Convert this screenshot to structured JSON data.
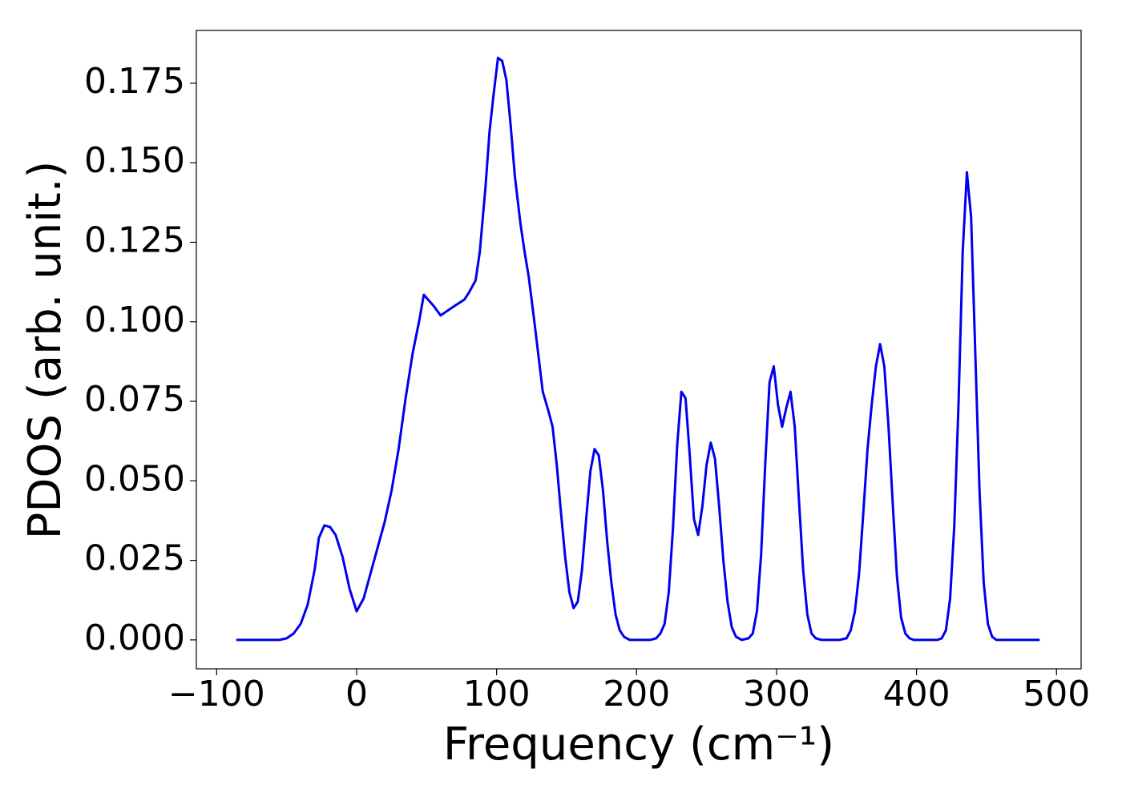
{
  "chart_data": {
    "type": "line",
    "x_label": "Frequency (cm⁻¹)",
    "y_label": "PDOS (arb. unit.)",
    "xlim": [
      -114.5,
      517.6
    ],
    "ylim": [
      -0.0091,
      0.1916
    ],
    "xticks": [
      {
        "value": -100,
        "label": "−100"
      },
      0,
      100,
      200,
      300,
      400,
      500
    ],
    "yticks": [
      {
        "value": 0,
        "label": "0.000"
      },
      {
        "value": 0.025,
        "label": "0.025"
      },
      {
        "value": 0.05,
        "label": "0.050"
      },
      {
        "value": 0.075,
        "label": "0.075"
      },
      {
        "value": 0.1,
        "label": "0.100"
      },
      {
        "value": 0.125,
        "label": "0.125"
      },
      {
        "value": 0.15,
        "label": "0.150"
      },
      {
        "value": 0.175,
        "label": "0.175"
      }
    ],
    "grid": false,
    "x": [
      -86,
      -55,
      -50,
      -45,
      -40,
      -35,
      -30,
      -27,
      -23,
      -19,
      -15,
      -10,
      -5,
      0,
      5,
      10,
      15,
      20,
      25,
      30,
      35,
      40,
      45,
      48,
      55,
      60,
      70,
      77,
      80,
      85,
      88,
      92,
      95,
      98,
      101,
      104,
      107,
      110,
      113,
      117,
      120,
      123,
      127,
      130,
      133,
      137,
      140,
      143,
      146,
      149,
      152,
      155,
      158,
      161,
      164,
      167,
      170,
      173,
      176,
      179,
      182,
      185,
      188,
      191,
      195,
      210,
      214,
      217,
      220,
      223,
      226,
      229,
      232,
      235,
      238,
      241,
      244,
      247,
      250,
      253,
      256,
      259,
      262,
      265,
      268,
      271,
      275,
      280,
      283,
      286,
      289,
      292,
      295,
      298,
      301,
      304,
      307,
      310,
      313,
      316,
      319,
      322,
      325,
      328,
      332,
      345,
      350,
      353,
      356,
      359,
      362,
      365,
      368,
      371,
      374,
      377,
      380,
      383,
      386,
      389,
      392,
      395,
      398,
      415,
      418,
      421,
      424,
      427,
      430,
      433,
      436,
      439,
      442,
      445,
      448,
      451,
      454,
      457,
      488
    ],
    "series": [
      {
        "color": "#0000ee",
        "values": [
          0,
          0,
          0.0005,
          0.002,
          0.005,
          0.011,
          0.022,
          0.032,
          0.036,
          0.0355,
          0.033,
          0.026,
          0.016,
          0.009,
          0.013,
          0.021,
          0.029,
          0.037,
          0.047,
          0.06,
          0.076,
          0.09,
          0.101,
          0.1085,
          0.105,
          0.102,
          0.105,
          0.107,
          0.109,
          0.113,
          0.122,
          0.142,
          0.16,
          0.172,
          0.183,
          0.182,
          0.176,
          0.162,
          0.146,
          0.131,
          0.122,
          0.114,
          0.1,
          0.089,
          0.078,
          0.072,
          0.067,
          0.055,
          0.04,
          0.026,
          0.015,
          0.01,
          0.012,
          0.022,
          0.038,
          0.053,
          0.06,
          0.058,
          0.047,
          0.031,
          0.018,
          0.008,
          0.003,
          0.001,
          0,
          0,
          0.0005,
          0.002,
          0.005,
          0.015,
          0.035,
          0.061,
          0.078,
          0.076,
          0.058,
          0.038,
          0.033,
          0.042,
          0.055,
          0.062,
          0.057,
          0.042,
          0.025,
          0.012,
          0.004,
          0.001,
          0,
          0.0005,
          0.002,
          0.009,
          0.027,
          0.056,
          0.081,
          0.086,
          0.074,
          0.067,
          0.073,
          0.078,
          0.067,
          0.044,
          0.022,
          0.008,
          0.002,
          0.0005,
          0,
          0,
          0.0005,
          0.003,
          0.009,
          0.021,
          0.04,
          0.06,
          0.074,
          0.086,
          0.093,
          0.086,
          0.067,
          0.043,
          0.02,
          0.007,
          0.002,
          0.0005,
          0,
          0,
          0.0005,
          0.003,
          0.013,
          0.036,
          0.074,
          0.122,
          0.147,
          0.133,
          0.09,
          0.047,
          0.018,
          0.005,
          0.001,
          0,
          0
        ]
      }
    ]
  }
}
